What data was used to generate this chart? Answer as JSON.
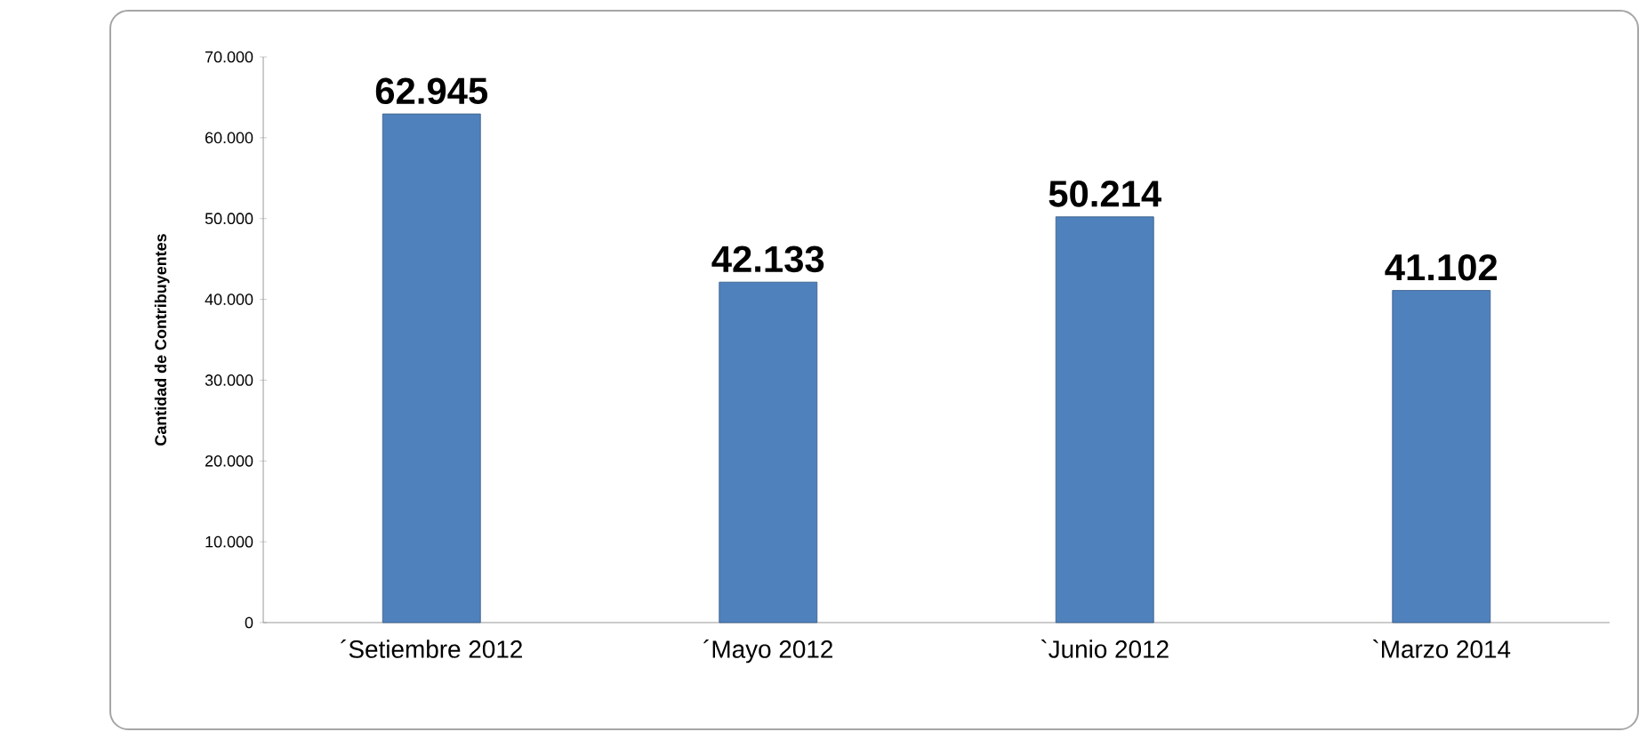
{
  "chart_data": {
    "type": "bar",
    "ylabel": "Cantidad de Contribuyentes",
    "categories": [
      "´Setiembre 2012",
      "´Mayo 2012",
      "`Junio 2012",
      "`Marzo 2014"
    ],
    "values": [
      62945,
      42133,
      50214,
      41102
    ],
    "value_labels": [
      "62.945",
      "42.133",
      "50.214",
      "41.102"
    ],
    "color": "#4f81bd",
    "ylim": [
      0,
      70000
    ],
    "yticks": [
      {
        "value": 0,
        "label": "0"
      },
      {
        "value": 10000,
        "label": "10.000"
      },
      {
        "value": 20000,
        "label": "20.000"
      },
      {
        "value": 30000,
        "label": "30.000"
      },
      {
        "value": 40000,
        "label": "40.000"
      },
      {
        "value": 50000,
        "label": "50.000"
      },
      {
        "value": 60000,
        "label": "60.000"
      },
      {
        "value": 70000,
        "label": "70.000"
      }
    ],
    "grid": false
  }
}
